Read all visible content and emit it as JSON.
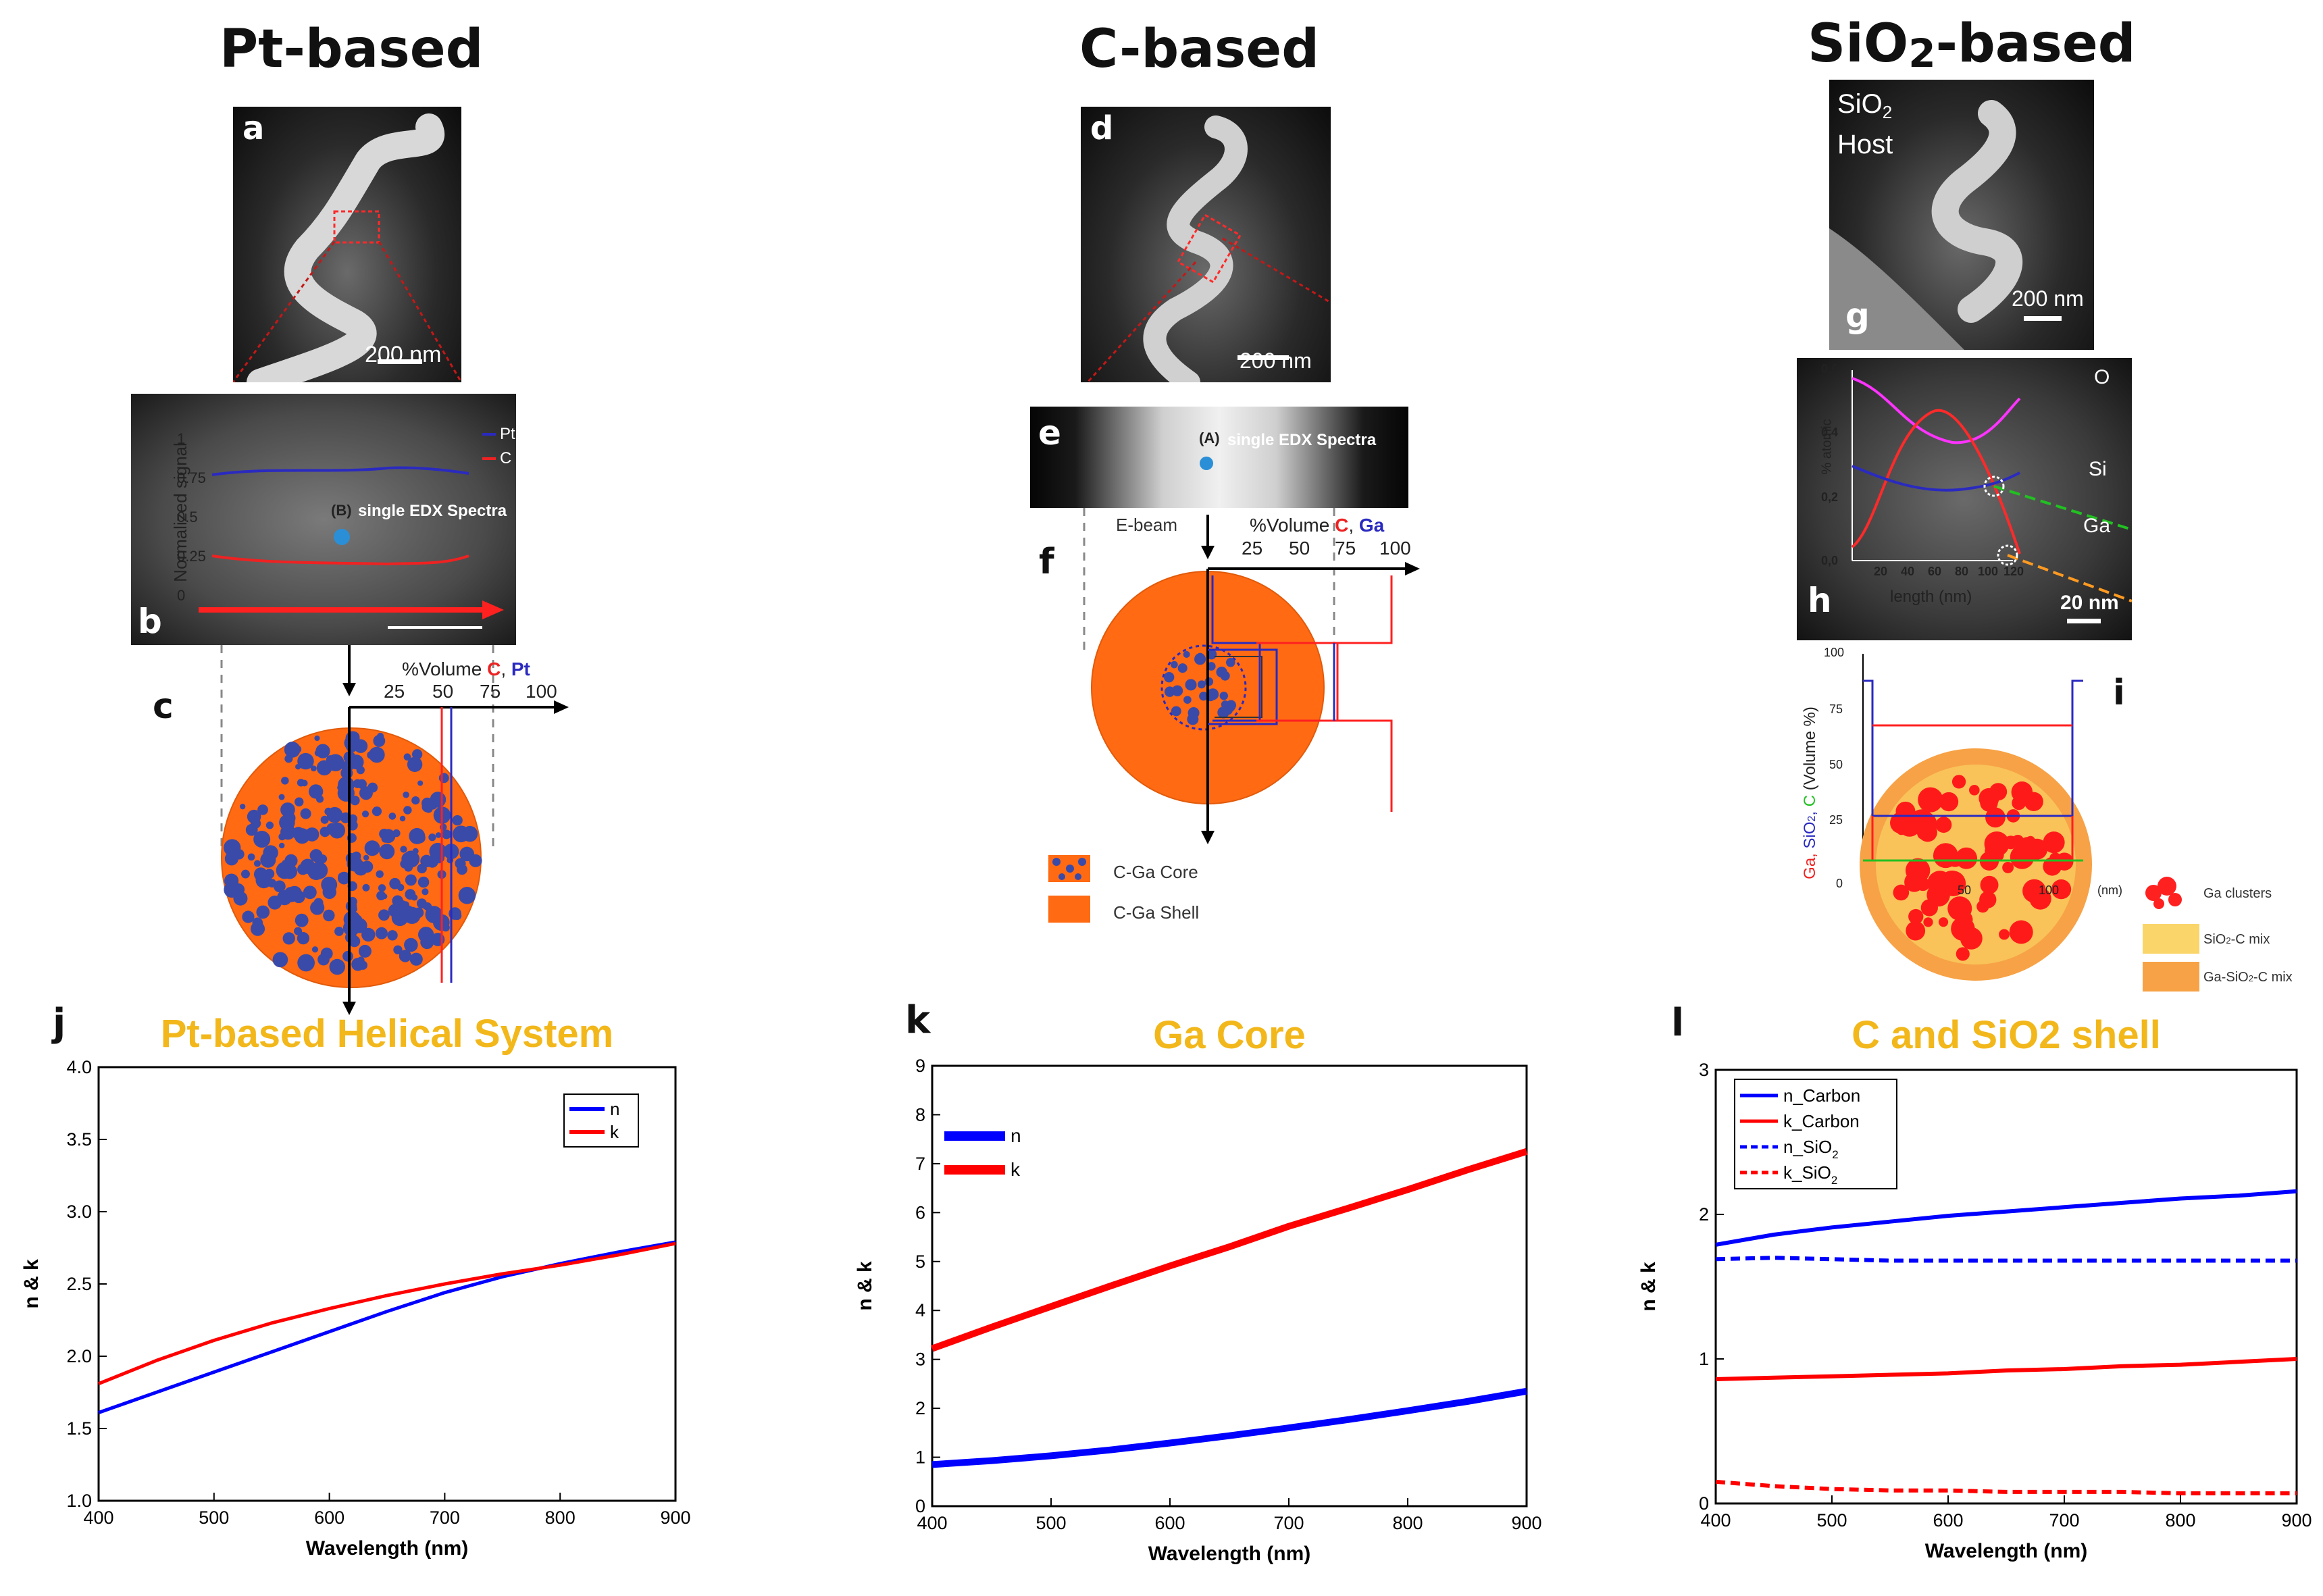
{
  "headers": {
    "pt": "Pt-based",
    "c": "C-based",
    "sio2_main": "SiO",
    "sio2_sub": "2",
    "sio2_tail": "-based"
  },
  "panel_letters": {
    "a": "a",
    "b": "b",
    "c": "c",
    "d": "d",
    "e": "e",
    "f": "f",
    "g": "g",
    "h": "h",
    "i": "i",
    "j": "j",
    "k": "k",
    "l": "l"
  },
  "panel_a": {
    "scale": "200 nm"
  },
  "panel_b": {
    "ylabel": "Normalized signal",
    "yticks": [
      "1",
      "0.75",
      "0.5",
      "0.25",
      "0"
    ],
    "legend_pt": "Pt",
    "legend_c": "C",
    "spot": "(B)",
    "spot_label": "single EDX Spectra"
  },
  "panel_c": {
    "axis_prefix": "%Volume ",
    "axis_c": "C",
    "axis_sep": ", ",
    "axis_pt": "Pt",
    "ticks": [
      "25",
      "50",
      "75",
      "100"
    ]
  },
  "panel_d": {
    "scale": "200 nm"
  },
  "panel_e": {
    "spot": "(A)",
    "spot_label": "single EDX Spectra"
  },
  "panel_f": {
    "ebeam": "E-beam",
    "axis_prefix": "%Volume ",
    "axis_c": "C",
    "axis_sep": ", ",
    "axis_ga": "Ga",
    "ticks": [
      "25",
      "50",
      "75",
      "100"
    ],
    "legend_core": "C-Ga Core",
    "legend_shell": "C-Ga Shell"
  },
  "panel_g": {
    "host1": "SiO",
    "host1_sub": "2",
    "host2": "Host",
    "scale": "200 nm"
  },
  "panel_h": {
    "ylabel": "% atomic",
    "yticks": [
      "0,6",
      "0,4",
      "0,2",
      "0,0"
    ],
    "xticks": [
      "20",
      "40",
      "60",
      "80",
      "100",
      "120"
    ],
    "xlabel": "length (nm)",
    "label_o": "O",
    "label_si": "Si",
    "label_ga": "Ga",
    "scale": "20 nm"
  },
  "panel_i": {
    "yticks": [
      "100",
      "75",
      "50",
      "25",
      "0"
    ],
    "ylabel_ga": "Ga, ",
    "ylabel_sio2": "SiO",
    "ylabel_sio2_sub": "2",
    "ylabel_comma": ", ",
    "ylabel_c": "C",
    "ylabel_unit": "  (Volume %)",
    "xticks": [
      "50",
      "100"
    ],
    "xunit": "(nm)",
    "legend_ga": "Ga clusters",
    "legend_sioc": "SiO",
    "legend_sioc_sub": "2",
    "legend_sioc_tail": "-C mix",
    "legend_gasioc": "Ga-SiO",
    "legend_gasioc_sub": "2",
    "legend_gasioc_tail": "-C mix"
  },
  "colors": {
    "n_line": "#0000ff",
    "k_line": "#ff0000",
    "title": "#f2b71a",
    "orange": "#ff6a13",
    "dot": "#3a4aa8"
  },
  "chart_data": [
    {
      "id": "j",
      "type": "line",
      "title": "Pt-based Helical System",
      "xlabel": "Wavelength (nm)",
      "ylabel": "n & k",
      "xlim": [
        400,
        900
      ],
      "ylim": [
        1.0,
        4.0
      ],
      "xticks": [
        400,
        500,
        600,
        700,
        800,
        900
      ],
      "yticks": [
        1.0,
        1.5,
        2.0,
        2.5,
        3.0,
        3.5,
        4.0
      ],
      "ytick_decimals": 1,
      "legend": "top-right",
      "x": [
        400,
        450,
        500,
        550,
        600,
        650,
        700,
        750,
        800,
        850,
        900
      ],
      "series": [
        {
          "name": "n",
          "color": "#0000ff",
          "dash": false,
          "values": [
            1.61,
            1.75,
            1.89,
            2.03,
            2.17,
            2.31,
            2.44,
            2.55,
            2.64,
            2.72,
            2.79
          ]
        },
        {
          "name": "k",
          "color": "#ff0000",
          "dash": false,
          "values": [
            1.81,
            1.97,
            2.11,
            2.23,
            2.33,
            2.42,
            2.5,
            2.57,
            2.63,
            2.7,
            2.78
          ]
        }
      ]
    },
    {
      "id": "k",
      "type": "line",
      "title": "Ga Core",
      "xlabel": "Wavelength (nm)",
      "ylabel": "n & k",
      "xlim": [
        400,
        900
      ],
      "ylim": [
        0,
        9
      ],
      "xticks": [
        400,
        500,
        600,
        700,
        800,
        900
      ],
      "yticks": [
        0,
        1,
        2,
        3,
        4,
        5,
        6,
        7,
        8,
        9
      ],
      "ytick_decimals": 0,
      "legend": "top-left",
      "x": [
        400,
        450,
        500,
        550,
        600,
        650,
        700,
        750,
        800,
        850,
        900
      ],
      "series": [
        {
          "name": "n",
          "color": "#0000ff",
          "dash": false,
          "values": [
            0.85,
            0.93,
            1.03,
            1.15,
            1.29,
            1.44,
            1.6,
            1.77,
            1.95,
            2.14,
            2.35
          ]
        },
        {
          "name": "k",
          "color": "#ff0000",
          "dash": false,
          "values": [
            3.22,
            3.66,
            4.08,
            4.5,
            4.91,
            5.3,
            5.72,
            6.09,
            6.47,
            6.87,
            7.25
          ]
        }
      ]
    },
    {
      "id": "l",
      "type": "line",
      "title": "C and SiO2 shell",
      "xlabel": "Wavelength (nm)",
      "ylabel": "n & k",
      "xlim": [
        400,
        900
      ],
      "ylim": [
        0,
        3
      ],
      "xticks": [
        400,
        500,
        600,
        700,
        800,
        900
      ],
      "yticks": [
        0,
        1,
        2,
        3
      ],
      "ytick_decimals": 0,
      "legend": "top-left",
      "x": [
        400,
        450,
        500,
        550,
        600,
        650,
        700,
        750,
        800,
        850,
        900
      ],
      "series": [
        {
          "name": "n_Carbon",
          "color": "#0000ff",
          "dash": false,
          "values": [
            1.79,
            1.86,
            1.91,
            1.95,
            1.99,
            2.02,
            2.05,
            2.08,
            2.11,
            2.13,
            2.16
          ]
        },
        {
          "name": "k_Carbon",
          "color": "#ff0000",
          "dash": false,
          "values": [
            0.86,
            0.87,
            0.88,
            0.89,
            0.9,
            0.92,
            0.93,
            0.95,
            0.96,
            0.98,
            1.0
          ]
        },
        {
          "name": "n_SiO",
          "sub": "2",
          "color": "#0000ff",
          "dash": true,
          "values": [
            1.69,
            1.7,
            1.69,
            1.68,
            1.68,
            1.68,
            1.68,
            1.68,
            1.68,
            1.68,
            1.68
          ]
        },
        {
          "name": "k_SiO",
          "sub": "2",
          "color": "#ff0000",
          "dash": true,
          "values": [
            0.15,
            0.12,
            0.1,
            0.09,
            0.09,
            0.08,
            0.08,
            0.08,
            0.07,
            0.07,
            0.07
          ]
        }
      ]
    }
  ]
}
